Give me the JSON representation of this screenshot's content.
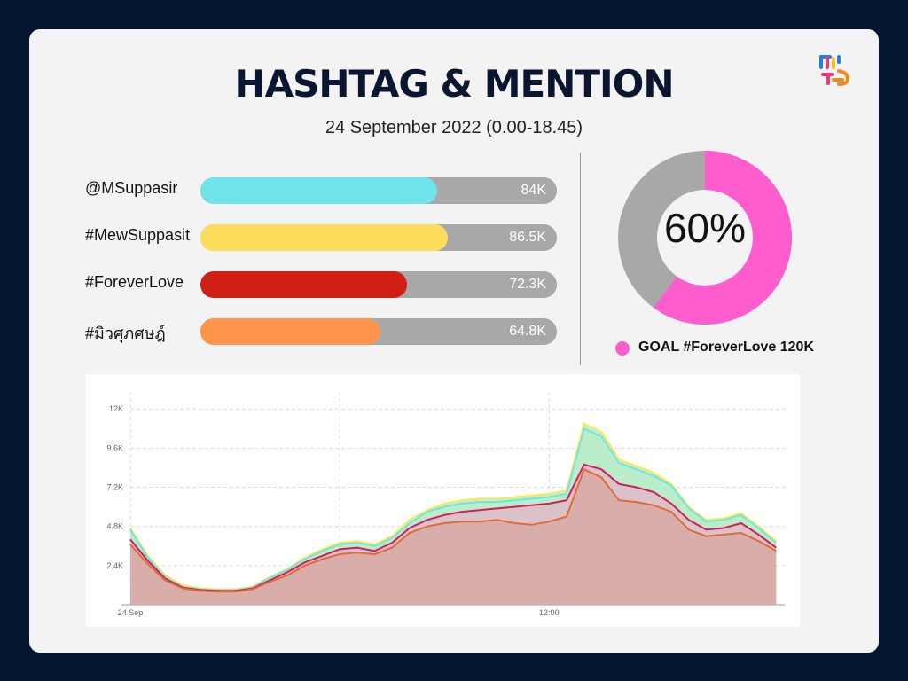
{
  "header": {
    "title": "HASHTAG & MENTION",
    "subtitle": "24 September 2022 (0.00-18.45)"
  },
  "bars": [
    {
      "label": "@MSuppasir",
      "value_text": "84K",
      "value": 84000,
      "fill_fraction": 0.665,
      "color": "#6fe4ea"
    },
    {
      "label": "#MewSuppasit",
      "value_text": "86.5K",
      "value": 86500,
      "fill_fraction": 0.695,
      "color": "#ffdd5c"
    },
    {
      "label": "#ForeverLove",
      "value_text": "72.3K",
      "value": 72300,
      "fill_fraction": 0.58,
      "color": "#d01f14"
    },
    {
      "label": "#มิวศุภศษฎ์",
      "value_text": "64.8K",
      "value": 64800,
      "fill_fraction": 0.505,
      "color": "#ff944a"
    }
  ],
  "goal": {
    "percent_text": "60%",
    "percent": 60,
    "label": "GOAL #ForeverLove 120K",
    "color": "#ff5ccd",
    "track_color": "#a8a8a8"
  },
  "chart_data": {
    "type": "area",
    "x_tick_labels": [
      "24 Sep",
      "12:00"
    ],
    "y_tick_labels": [
      "2.4K",
      "4.8K",
      "7.2K",
      "9.6K",
      "12K"
    ],
    "y_ticks": [
      2400,
      4800,
      7200,
      9600,
      12000
    ],
    "ylim": [
      0,
      12500
    ],
    "xlim": [
      0,
      18.75
    ],
    "x_ticks": [
      0,
      12
    ],
    "grid": true,
    "x": [
      0,
      0.5,
      1,
      1.5,
      2,
      2.5,
      3,
      3.5,
      4,
      4.5,
      5,
      5.5,
      6,
      6.5,
      7,
      7.5,
      8,
      8.5,
      9,
      9.5,
      10,
      10.5,
      11,
      11.5,
      12,
      12.5,
      13,
      13.5,
      14,
      14.5,
      15,
      15.5,
      16,
      16.5,
      17,
      17.5,
      18,
      18.5
    ],
    "series": [
      {
        "color": "#ffe84a",
        "fill": "#b8ecc8",
        "values": [
          4700,
          3000,
          1800,
          1200,
          1000,
          950,
          950,
          1100,
          1700,
          2200,
          2900,
          3400,
          3800,
          3900,
          3700,
          4200,
          5200,
          5800,
          6200,
          6400,
          6500,
          6500,
          6600,
          6700,
          6800,
          7000,
          11100,
          10600,
          8900,
          8500,
          8100,
          7400,
          6000,
          5200,
          5300,
          5600,
          4800,
          3900
        ]
      },
      {
        "color": "#6fe4ea",
        "fill": "#b8ecc8",
        "values": [
          4600,
          2900,
          1700,
          1100,
          950,
          900,
          900,
          1050,
          1650,
          2150,
          2800,
          3300,
          3700,
          3800,
          3600,
          4100,
          5000,
          5700,
          6000,
          6200,
          6300,
          6300,
          6400,
          6500,
          6600,
          6800,
          10800,
          10300,
          8700,
          8300,
          7900,
          7300,
          5900,
          5100,
          5200,
          5500,
          4700,
          3800
        ]
      },
      {
        "color": "#d01f5a",
        "fill": "#e0b8c8",
        "values": [
          4000,
          2700,
          1600,
          1050,
          900,
          850,
          850,
          1000,
          1500,
          2000,
          2600,
          3000,
          3400,
          3500,
          3300,
          3800,
          4700,
          5200,
          5500,
          5700,
          5800,
          5900,
          6000,
          6100,
          6200,
          6400,
          8600,
          8300,
          7400,
          7200,
          6900,
          6200,
          5200,
          4600,
          4700,
          5000,
          4300,
          3500
        ]
      },
      {
        "color": "#e06a3a",
        "fill": "#d8aaa5",
        "values": [
          3700,
          2500,
          1500,
          1000,
          850,
          800,
          800,
          950,
          1400,
          1800,
          2400,
          2800,
          3100,
          3200,
          3100,
          3500,
          4400,
          4800,
          5000,
          5100,
          5100,
          5200,
          5000,
          4900,
          5100,
          5400,
          8300,
          7800,
          6400,
          6300,
          6100,
          5700,
          4600,
          4200,
          4300,
          4400,
          3900,
          3300
        ]
      }
    ]
  }
}
